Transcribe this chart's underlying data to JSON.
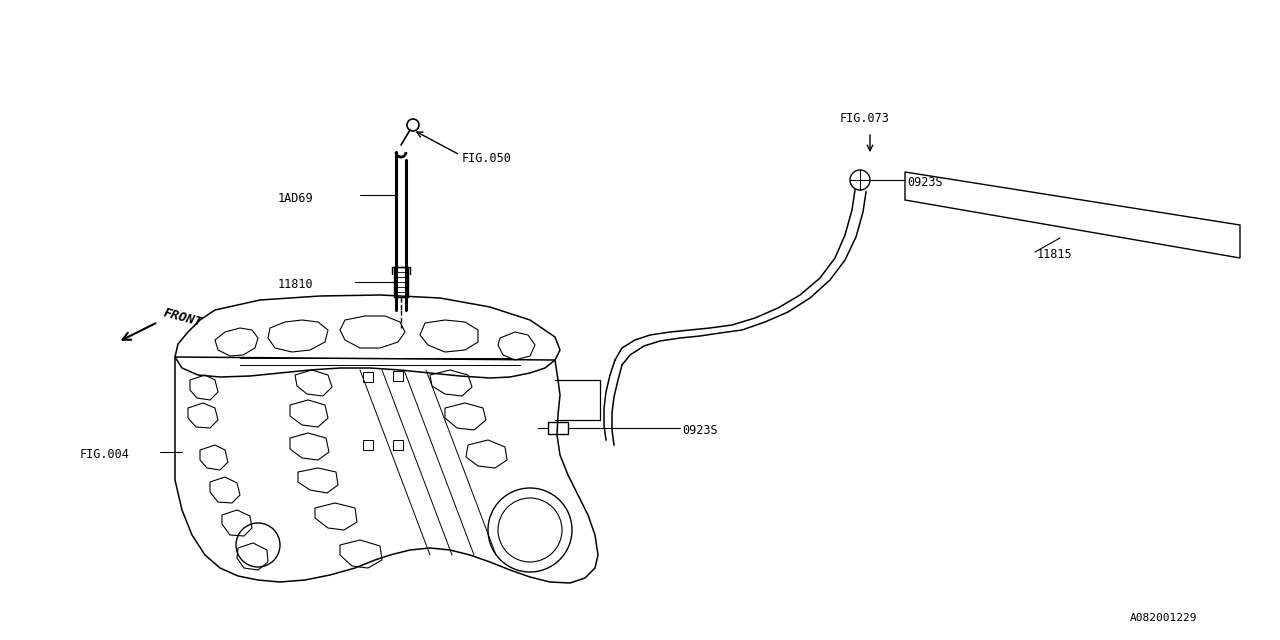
{
  "bg_color": "#ffffff",
  "line_color": "#000000",
  "text_color": "#000000",
  "fig_id": "A082001229",
  "labels": {
    "fig050": "FIG.050",
    "1ad69": "1AD69",
    "11810": "11810",
    "fig004": "FIG.004",
    "front": "FRONT",
    "0923s_top": "0923S",
    "0923s_bottom": "0923S",
    "fig073": "FIG.073",
    "11815": "11815"
  }
}
